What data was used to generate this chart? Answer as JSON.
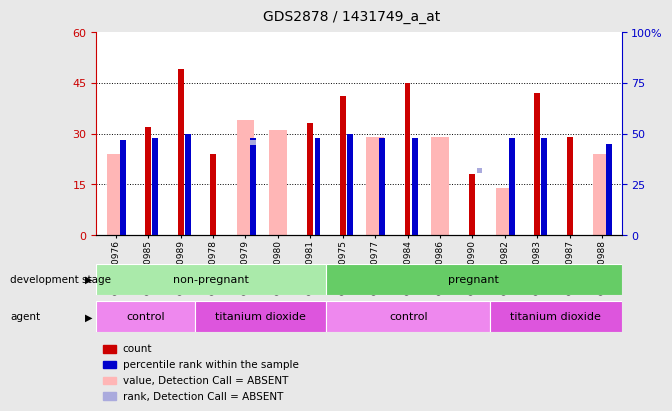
{
  "title": "GDS2878 / 1431749_a_at",
  "samples": [
    "GSM180976",
    "GSM180985",
    "GSM180989",
    "GSM180978",
    "GSM180979",
    "GSM180980",
    "GSM180981",
    "GSM180975",
    "GSM180977",
    "GSM180984",
    "GSM180986",
    "GSM180990",
    "GSM180982",
    "GSM180983",
    "GSM180987",
    "GSM180988"
  ],
  "count_values": [
    0,
    32,
    49,
    24,
    0,
    0,
    33,
    41,
    0,
    45,
    0,
    18,
    0,
    42,
    29,
    0
  ],
  "count_absent": [
    24,
    0,
    0,
    0,
    34,
    31,
    0,
    0,
    29,
    0,
    29,
    0,
    14,
    0,
    0,
    24
  ],
  "rank_pct": [
    47,
    48,
    50,
    0,
    48,
    0,
    48,
    50,
    48,
    48,
    0,
    0,
    48,
    48,
    0,
    45
  ],
  "rank_absent_pct": [
    0,
    0,
    0,
    0,
    47,
    0,
    0,
    0,
    0,
    0,
    0,
    33,
    0,
    0,
    0,
    0
  ],
  "left_ylim": [
    0,
    60
  ],
  "right_ylim": [
    0,
    100
  ],
  "left_yticks": [
    0,
    15,
    30,
    45,
    60
  ],
  "right_yticks": [
    0,
    25,
    50,
    75,
    100
  ],
  "color_count": "#cc0000",
  "color_rank": "#0000cc",
  "color_count_absent": "#ffb6b6",
  "color_rank_absent": "#aaaadd",
  "dev_stage_groups": [
    {
      "label": "non-pregnant",
      "start": 0,
      "end": 7,
      "color": "#aaeaaa"
    },
    {
      "label": "pregnant",
      "start": 7,
      "end": 16,
      "color": "#66cc66"
    }
  ],
  "agent_groups": [
    {
      "label": "control",
      "start": 0,
      "end": 3,
      "color": "#ee88ee"
    },
    {
      "label": "titanium dioxide",
      "start": 3,
      "end": 7,
      "color": "#dd55dd"
    },
    {
      "label": "control",
      "start": 7,
      "end": 12,
      "color": "#ee88ee"
    },
    {
      "label": "titanium dioxide",
      "start": 12,
      "end": 16,
      "color": "#dd55dd"
    }
  ],
  "bg_color": "#e8e8e8",
  "plot_bg": "#ffffff",
  "legend_items": [
    {
      "label": "count",
      "color": "#cc0000"
    },
    {
      "label": "percentile rank within the sample",
      "color": "#0000cc"
    },
    {
      "label": "value, Detection Call = ABSENT",
      "color": "#ffb6b6"
    },
    {
      "label": "rank, Detection Call = ABSENT",
      "color": "#aaaadd"
    }
  ]
}
